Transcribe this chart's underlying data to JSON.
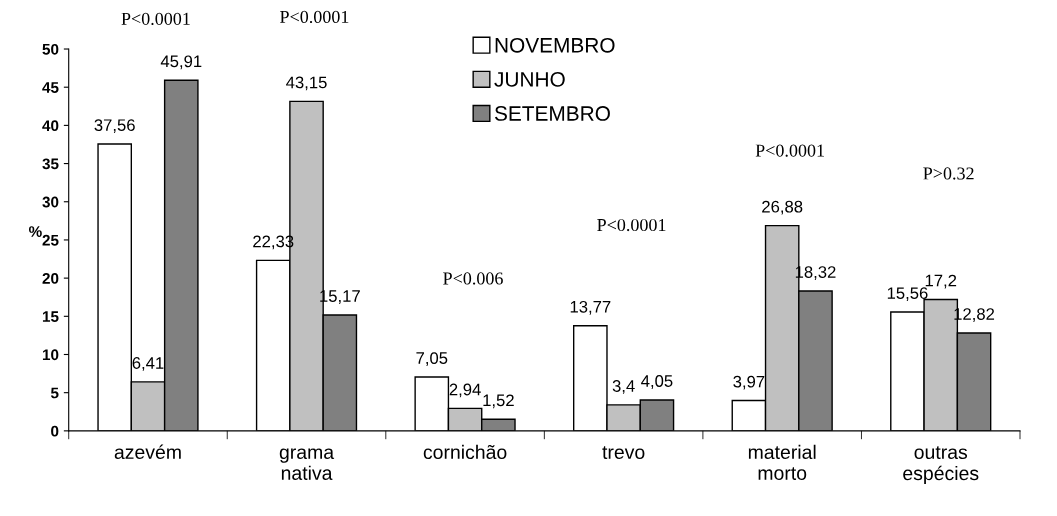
{
  "chart_data": {
    "type": "bar",
    "ylabel": "%",
    "categories": [
      "azevém",
      "grama\nnativa",
      "cornichão",
      "trevo",
      "material\nmorto",
      "outras\nespécies"
    ],
    "series": [
      {
        "name": "NOVEMBRO",
        "color": "#ffffff",
        "values": [
          37.56,
          22.33,
          7.05,
          13.77,
          3.97,
          15.56
        ],
        "value_labels": [
          "37,56",
          "22,33",
          "7,05",
          "13,77",
          "3,97",
          "15,56"
        ]
      },
      {
        "name": "JUNHO",
        "color": "#c0c0c0",
        "values": [
          6.41,
          43.15,
          2.94,
          3.4,
          26.88,
          17.2
        ],
        "value_labels": [
          "6,41",
          "43,15",
          "2,94",
          "3,4",
          "26,88",
          "17,2"
        ]
      },
      {
        "name": "SETEMBRO",
        "color": "#808080",
        "values": [
          45.91,
          15.17,
          1.52,
          4.05,
          18.32,
          12.82
        ],
        "value_labels": [
          "45,91",
          "15,17",
          "1,52",
          "4,05",
          "18,32",
          "12,82"
        ]
      }
    ],
    "ylim": [
      0,
      50
    ],
    "yticks": [
      0,
      5,
      10,
      15,
      20,
      25,
      30,
      35,
      40,
      45,
      50
    ],
    "grid": false,
    "legend": "top",
    "annotations": [
      "P<0.0001",
      "P<0.0001",
      "P<0.006",
      "P<0.0001",
      "P<0.0001",
      "P>0.32"
    ]
  }
}
